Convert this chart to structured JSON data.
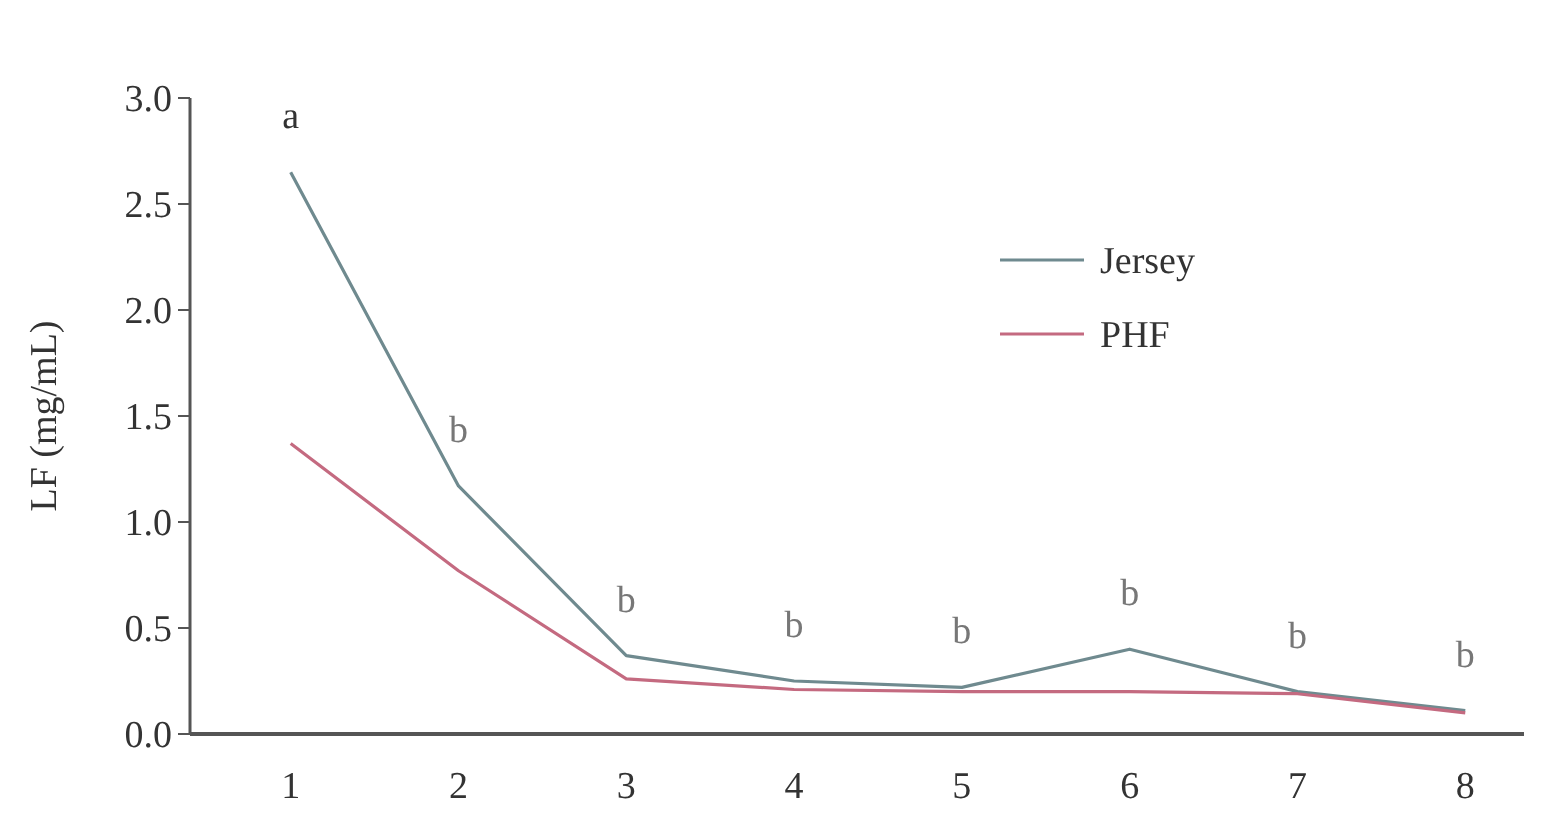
{
  "chart_data": {
    "type": "line",
    "ylabel": "LF (mg/mL)",
    "x": [
      1,
      2,
      3,
      4,
      5,
      6,
      7,
      8
    ],
    "series": [
      {
        "name": "Jersey",
        "color": "#6f8a8f",
        "values": [
          2.65,
          1.17,
          0.37,
          0.25,
          0.22,
          0.4,
          0.2,
          0.11
        ]
      },
      {
        "name": "PHF",
        "color": "#c46a80",
        "values": [
          1.37,
          0.77,
          0.26,
          0.21,
          0.2,
          0.2,
          0.19,
          0.1
        ]
      }
    ],
    "xlim": [
      0.4,
      8.35
    ],
    "xticks": [
      1,
      2,
      3,
      4,
      5,
      6,
      7,
      8
    ],
    "ylim": [
      0,
      3
    ],
    "yticks": [
      {
        "value": 0,
        "label": "0.0"
      },
      {
        "value": 0.5,
        "label": "0.5"
      },
      {
        "value": 1,
        "label": "1.0"
      },
      {
        "value": 1.5,
        "label": "1.5"
      },
      {
        "value": 2,
        "label": "2.0"
      },
      {
        "value": 2.5,
        "label": "2.5"
      },
      {
        "value": 3,
        "label": "3.0"
      }
    ],
    "annotations": [
      {
        "text": "a",
        "x": 1,
        "y": 2.65
      },
      {
        "text": "b",
        "x": 2,
        "y": 1.17
      },
      {
        "text": "b",
        "x": 3,
        "y": 0.37
      },
      {
        "text": "b",
        "x": 4,
        "y": 0.25
      },
      {
        "text": "b",
        "x": 5,
        "y": 0.22
      },
      {
        "text": "b",
        "x": 6,
        "y": 0.4
      },
      {
        "text": "b",
        "x": 7,
        "y": 0.2
      },
      {
        "text": "b",
        "x": 8,
        "y": 0.11
      }
    ],
    "legend": "top right",
    "grid": false,
    "marker": "none",
    "line_style": "solid"
  }
}
